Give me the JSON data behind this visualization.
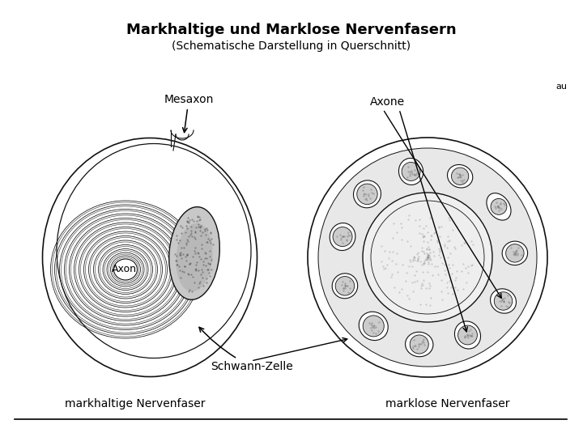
{
  "title": "Markhaltige und Marklose Nervenfasern",
  "subtitle": "(Schematische Darstellung in Querschnitt)",
  "bg_color": "#ffffff",
  "label_mesaxon": "Mesaxon",
  "label_axone": "Axone",
  "label_axon": "Axon",
  "label_schwann": "Schwann-Zelle",
  "label_markhaltige": "markhaltige Nervenfaser",
  "label_marklose": "marklose Nervenfaser",
  "label_au": "au",
  "title_fontsize": 13,
  "subtitle_fontsize": 10,
  "label_fontsize": 10,
  "fig_width": 7.2,
  "fig_height": 5.4,
  "dpi": 100
}
